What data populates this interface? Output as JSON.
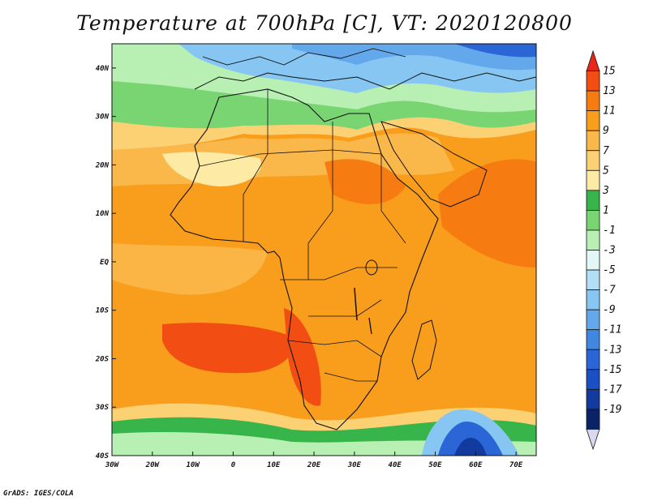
{
  "title": "Temperature at 700hPa [C], VT: 2020120800",
  "credit": "GrADS: IGES/COLA",
  "map": {
    "lon_range": [
      -30,
      75
    ],
    "lat_range": [
      -40,
      45
    ],
    "lon_ticks": [
      "30W",
      "20W",
      "10W",
      "0",
      "10E",
      "20E",
      "30E",
      "40E",
      "50E",
      "60E",
      "70E"
    ],
    "lat_ticks": [
      "40N",
      "30N",
      "20N",
      "10N",
      "EQ",
      "10S",
      "20S",
      "30S",
      "40S"
    ]
  },
  "colorbar": {
    "labels": [
      "15",
      "13",
      "11",
      "9",
      "7",
      "5",
      "3",
      "1",
      "-1",
      "-3",
      "-5",
      "-7",
      "-9",
      "-11",
      "-13",
      "-15",
      "-17",
      "-19"
    ],
    "colors": [
      "#e8261c",
      "#f24d13",
      "#f67c12",
      "#f99d1d",
      "#fbb84a",
      "#fcd174",
      "#fdeaa4",
      "#37b54a",
      "#78d572",
      "#b8f0b4",
      "#e3f7f7",
      "#b2dff5",
      "#87c6f2",
      "#64a8ec",
      "#4087e1",
      "#2a66d6",
      "#1b4fc4",
      "#123a9f",
      "#0a2268",
      "#d8d8f0"
    ]
  }
}
